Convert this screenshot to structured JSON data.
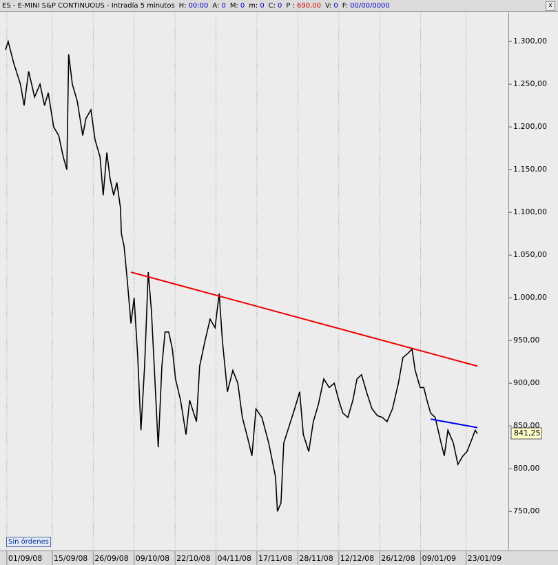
{
  "header": {
    "title": "ES - E-MINI S&P CONTINUOUS - Intradía 5 minutos",
    "fields": [
      {
        "label": "H:",
        "value": "00:00",
        "color": "#0000cc"
      },
      {
        "label": "A:",
        "value": "0",
        "color": "#0000cc"
      },
      {
        "label": "M:",
        "value": "0",
        "color": "#0000cc"
      },
      {
        "label": "m:",
        "value": "0",
        "color": "#0000cc"
      },
      {
        "label": "C:",
        "value": "0",
        "color": "#0000cc"
      },
      {
        "label": "P :",
        "value": "690,00",
        "color": "#dd0000"
      },
      {
        "label": "V:",
        "value": "0",
        "color": "#0000cc"
      },
      {
        "label": "F:",
        "value": "00/00/0000",
        "color": "#0000cc"
      }
    ]
  },
  "button": "Sin órdenes",
  "chart_data": {
    "type": "line",
    "x": [
      -0.3,
      0.3,
      1.5,
      3.0,
      3.8,
      4.8,
      6.1,
      7.3,
      8.3,
      9.1,
      10.3,
      11.4,
      12.4,
      13.2,
      13.6,
      14.4,
      15.5,
      16.7,
      17.4,
      18.5,
      19.4,
      20.5,
      21.2,
      22.0,
      22.7,
      23.5,
      24.2,
      25.0,
      25.2,
      25.8,
      26.5,
      27.3,
      28.0,
      28.8,
      29.5,
      30.3,
      31.1,
      31.8,
      32.6,
      33.3,
      34.1,
      34.8,
      35.6,
      36.4,
      37.1,
      38.2,
      39.4,
      40.2,
      41.7,
      42.4,
      43.6,
      44.7,
      45.8,
      46.7,
      47.4,
      48.5,
      49.7,
      50.8,
      51.8,
      53.0,
      53.9,
      54.8,
      56.1,
      57.6,
      59.1,
      59.5,
      60.3,
      60.9,
      62.1,
      63.3,
      64.4,
      65.2,
      66.4,
      67.4,
      68.5,
      69.7,
      70.9,
      72.0,
      73.0,
      73.9,
      75.0,
      76.1,
      77.0,
      78.0,
      79.1,
      80.3,
      81.5,
      82.6,
      83.6,
      84.8,
      86.1,
      87.1,
      88.2,
      89.1,
      89.8,
      90.9,
      91.7,
      92.4,
      93.2,
      94.2,
      95.5,
      96.2,
      97.0,
      98.2,
      99.2,
      100.3,
      101.2,
      102.3,
      103.0,
      103.5
    ],
    "series": [
      {
        "color": "#000000",
        "values": [
          1290,
          1300,
          1275,
          1250,
          1225,
          1265,
          1235,
          1250,
          1225,
          1240,
          1200,
          1190,
          1165,
          1150,
          1285,
          1250,
          1230,
          1190,
          1210,
          1220,
          1185,
          1165,
          1120,
          1170,
          1140,
          1120,
          1135,
          1105,
          1075,
          1060,
          1020,
          970,
          1000,
          930,
          845,
          920,
          1030,
          985,
          900,
          825,
          920,
          960,
          960,
          940,
          905,
          880,
          840,
          880,
          855,
          920,
          950,
          975,
          965,
          1005,
          950,
          890,
          915,
          900,
          860,
          835,
          815,
          870,
          860,
          830,
          790,
          750,
          760,
          830,
          850,
          870,
          890,
          840,
          820,
          855,
          875,
          905,
          895,
          900,
          880,
          865,
          860,
          880,
          905,
          910,
          890,
          870,
          862,
          860,
          855,
          870,
          900,
          930,
          935,
          940,
          915,
          895,
          895,
          880,
          865,
          860,
          830,
          815,
          845,
          830,
          805,
          815,
          820,
          835,
          845,
          841
        ]
      }
    ],
    "lines": [
      {
        "color": "#ee0000",
        "x": [
          27.3,
          103.5
        ],
        "values": [
          1030,
          920
        ]
      },
      {
        "color": "#0000ee",
        "x": [
          93.2,
          103.5
        ],
        "values": [
          858,
          848
        ]
      }
    ],
    "last": {
      "value": 841.25,
      "label": "841,25"
    },
    "xlim": [
      -1.5,
      110.3
    ],
    "xticks": [
      {
        "value": 0,
        "label": "01/09/08"
      },
      {
        "value": 10,
        "label": "15/09/08"
      },
      {
        "value": 19,
        "label": "26/09/08"
      },
      {
        "value": 28,
        "label": "09/10/08"
      },
      {
        "value": 37,
        "label": "22/10/08"
      },
      {
        "value": 46,
        "label": "04/11/08"
      },
      {
        "value": 55,
        "label": "17/11/08"
      },
      {
        "value": 64,
        "label": "28/11/08"
      },
      {
        "value": 73,
        "label": "12/12/08"
      },
      {
        "value": 82,
        "label": "26/12/08"
      },
      {
        "value": 91,
        "label": "09/01/09"
      },
      {
        "value": 101,
        "label": "23/01/09"
      }
    ],
    "ylim": [
      705,
      1334
    ],
    "yticks": [
      {
        "value": 750,
        "label": "750,00"
      },
      {
        "value": 800,
        "label": "800,00"
      },
      {
        "value": 850,
        "label": "850,00"
      },
      {
        "value": 900,
        "label": "900,00"
      },
      {
        "value": 950,
        "label": "950,00"
      },
      {
        "value": 1000,
        "label": "1.000,00"
      },
      {
        "value": 1050,
        "label": "1.050,00"
      },
      {
        "value": 1100,
        "label": "1.100,00"
      },
      {
        "value": 1150,
        "label": "1.150,00"
      },
      {
        "value": 1200,
        "label": "1.200,00"
      },
      {
        "value": 1250,
        "label": "1.250,00"
      },
      {
        "value": 1300,
        "label": "1.300,00"
      }
    ],
    "grid": true
  }
}
